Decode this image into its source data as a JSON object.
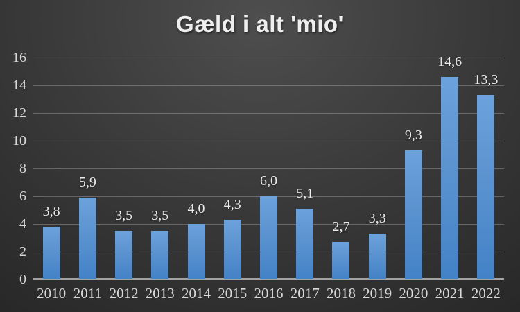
{
  "chart_data": {
    "type": "bar",
    "title": "Gæld i alt 'mio'",
    "categories": [
      "2010",
      "2011",
      "2012",
      "2013",
      "2014",
      "2015",
      "2016",
      "2017",
      "2018",
      "2019",
      "2020",
      "2021",
      "2022"
    ],
    "values": [
      3.8,
      5.9,
      3.5,
      3.5,
      4.0,
      4.3,
      6.0,
      5.1,
      2.7,
      3.3,
      9.3,
      14.6,
      13.3
    ],
    "value_labels": [
      "3,8",
      "5,9",
      "3,5",
      "3,5",
      "4,0",
      "4,3",
      "6,0",
      "5,1",
      "2,7",
      "3,3",
      "9,3",
      "14,6",
      "13,3"
    ],
    "xlabel": "",
    "ylabel": "",
    "ylim": [
      0,
      16
    ],
    "yticks": [
      0,
      2,
      4,
      6,
      8,
      10,
      12,
      14,
      16
    ],
    "grid": true,
    "legend": false,
    "decimal_separator": ","
  },
  "colors": {
    "bar_fill_top": "#6CA2DC",
    "bar_fill_mid": "#5B93D0",
    "bar_fill_bottom": "#4382C7",
    "bar_accent": "#5B9BD5",
    "background_center": "#4E4E4E",
    "background_edge": "#272727",
    "gridline": "rgba(255,255,255,0.26)",
    "axis_line": "#A2A2A2",
    "axis_text": "#D9D9D9",
    "title_text": "#EFEFEF"
  }
}
